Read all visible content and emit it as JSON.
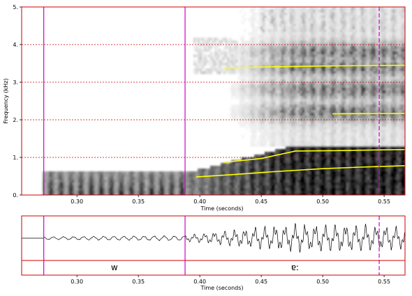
{
  "chart_data": [
    {
      "type": "heatmap",
      "subtype": "spectrogram",
      "xlabel": "Time (seconds)",
      "ylabel": "Frequency (kHz)",
      "xlim": [
        0.255,
        0.567
      ],
      "ylim": [
        0,
        5
      ],
      "x_ticks": [
        0.3,
        0.35,
        0.4,
        0.45,
        0.5,
        0.55
      ],
      "x_tick_labels": [
        "0.30",
        "0.35",
        "0.40",
        "0.45",
        "0.50",
        "0.55"
      ],
      "y_ticks": [
        0,
        1,
        2,
        3,
        4,
        5
      ],
      "y_tick_labels": [
        "0.",
        "1.",
        "2.",
        "3.",
        "4.",
        "5."
      ],
      "grid": "horizontal dashed red at each kHz",
      "colors": {
        "frame": "#cc0000",
        "boundary": "#cc00cc",
        "formant": "#ffff00",
        "intensity": "#000000"
      },
      "boundaries": [
        0.273,
        0.388
      ],
      "cursor": 0.546,
      "formant_tracks": [
        {
          "points": [
            [
              0.397,
              0.48
            ],
            [
              0.43,
              0.55
            ],
            [
              0.46,
              0.62
            ],
            [
              0.5,
              0.7
            ],
            [
              0.53,
              0.74
            ],
            [
              0.567,
              0.78
            ]
          ]
        },
        {
          "points": [
            [
              0.42,
              0.87
            ],
            [
              0.45,
              0.97
            ],
            [
              0.478,
              1.17
            ],
            [
              0.51,
              1.18
            ],
            [
              0.567,
              1.21
            ]
          ]
        },
        {
          "points": [
            [
              0.508,
              2.16
            ],
            [
              0.567,
              2.17
            ]
          ]
        },
        {
          "points": [
            [
              0.42,
              3.38
            ],
            [
              0.46,
              3.41
            ],
            [
              0.5,
              3.43
            ],
            [
              0.567,
              3.45
            ]
          ]
        }
      ]
    },
    {
      "type": "line",
      "subtype": "waveform",
      "xlabel": "Time (seconds)",
      "xlim": [
        0.255,
        0.567
      ],
      "x_ticks": [
        0.3,
        0.35,
        0.4,
        0.45,
        0.5,
        0.55
      ],
      "x_tick_labels": [
        "0.30",
        "0.35",
        "0.40",
        "0.45",
        "0.50",
        "0.55"
      ],
      "segments": [
        {
          "label": "w",
          "start": 0.273,
          "end": 0.388
        },
        {
          "label": "ɐː",
          "start": 0.388,
          "end": 0.567
        }
      ]
    }
  ]
}
